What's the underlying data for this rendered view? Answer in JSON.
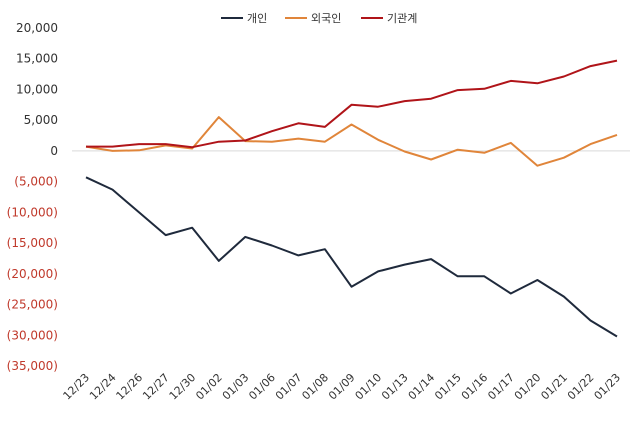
{
  "chart_data": {
    "type": "line",
    "categories": [
      "12/23",
      "12/24",
      "12/26",
      "12/27",
      "12/30",
      "01/02",
      "01/03",
      "01/06",
      "01/07",
      "01/08",
      "01/09",
      "01/10",
      "01/13",
      "01/14",
      "01/15",
      "01/16",
      "01/17",
      "01/20",
      "01/21",
      "01/22",
      "01/23"
    ],
    "series": [
      {
        "name": "개인",
        "color": "#1f2a3c",
        "values": [
          -4300,
          -6300,
          -10000,
          -13700,
          -12500,
          -17900,
          -14000,
          -15400,
          -17000,
          -16000,
          -22100,
          -19600,
          -18500,
          -17600,
          -20400,
          -20400,
          -23200,
          -21000,
          -23700,
          -27600,
          -30200
        ]
      },
      {
        "name": "외국인",
        "color": "#e0853a",
        "values": [
          700,
          0,
          100,
          900,
          400,
          5500,
          1600,
          1500,
          2000,
          1500,
          4300,
          1800,
          -100,
          -1400,
          200,
          -300,
          1300,
          -2400,
          -1100,
          1100,
          2600
        ]
      },
      {
        "name": "기관계",
        "color": "#b01419",
        "values": [
          700,
          700,
          1100,
          1100,
          600,
          1500,
          1700,
          3200,
          4500,
          3900,
          7500,
          7200,
          8100,
          8500,
          9900,
          10100,
          11400,
          11000,
          12100,
          13800,
          14700
        ]
      }
    ],
    "y_ticks": [
      "20,000",
      "15,000",
      "10,000",
      "5,000",
      "0",
      "(5,000)",
      "(10,000)",
      "(15,000)",
      "(20,000)",
      "(25,000)",
      "(30,000)",
      "(35,000)"
    ],
    "ylim": [
      -35000,
      20000
    ],
    "negative_tick_color": "#c0392b",
    "positive_tick_color": "#333333",
    "legend_position": "top-center",
    "grid": false
  }
}
